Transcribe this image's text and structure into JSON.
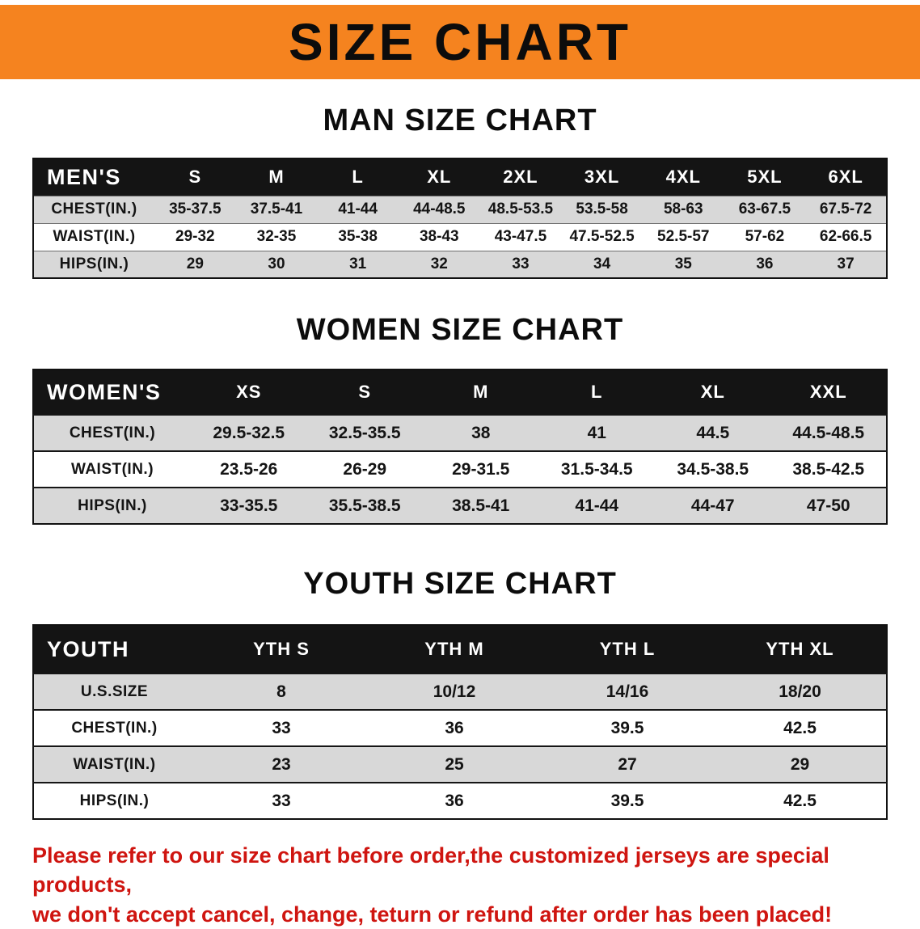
{
  "colors": {
    "banner_orange": "#f5831f",
    "table_header_black": "#141414",
    "row_stripe_gray": "#d8d8d8",
    "notice_red": "#cf1510"
  },
  "banner": {
    "title": "SIZE CHART"
  },
  "sections": [
    {
      "heading": "MAN SIZE CHART",
      "table": {
        "header": [
          "MEN'S",
          "S",
          "M",
          "L",
          "XL",
          "2XL",
          "3XL",
          "4XL",
          "5XL",
          "6XL"
        ],
        "rows": [
          {
            "label": "CHEST(IN.)",
            "values": [
              "35-37.5",
              "37.5-41",
              "41-44",
              "44-48.5",
              "48.5-53.5",
              "53.5-58",
              "58-63",
              "63-67.5",
              "67.5-72"
            ]
          },
          {
            "label": "WAIST(IN.)",
            "values": [
              "29-32",
              "32-35",
              "35-38",
              "38-43",
              "43-47.5",
              "47.5-52.5",
              "52.5-57",
              "57-62",
              "62-66.5"
            ]
          },
          {
            "label": "HIPS(IN.)",
            "values": [
              "29",
              "30",
              "31",
              "32",
              "33",
              "34",
              "35",
              "36",
              "37"
            ]
          }
        ]
      }
    },
    {
      "heading": "WOMEN SIZE CHART",
      "table": {
        "header": [
          "WOMEN'S",
          "XS",
          "S",
          "M",
          "L",
          "XL",
          "XXL"
        ],
        "rows": [
          {
            "label": "CHEST(IN.)",
            "values": [
              "29.5-32.5",
              "32.5-35.5",
              "38",
              "41",
              "44.5",
              "44.5-48.5"
            ]
          },
          {
            "label": "WAIST(IN.)",
            "values": [
              "23.5-26",
              "26-29",
              "29-31.5",
              "31.5-34.5",
              "34.5-38.5",
              "38.5-42.5"
            ]
          },
          {
            "label": "HIPS(IN.)",
            "values": [
              "33-35.5",
              "35.5-38.5",
              "38.5-41",
              "41-44",
              "44-47",
              "47-50"
            ]
          }
        ]
      }
    },
    {
      "heading": "YOUTH SIZE CHART",
      "table": {
        "header": [
          "YOUTH",
          "YTH S",
          "YTH M",
          "YTH L",
          "YTH XL"
        ],
        "rows": [
          {
            "label": "U.S.SIZE",
            "values": [
              "8",
              "10/12",
              "14/16",
              "18/20"
            ]
          },
          {
            "label": "CHEST(IN.)",
            "values": [
              "33",
              "36",
              "39.5",
              "42.5"
            ]
          },
          {
            "label": "WAIST(IN.)",
            "values": [
              "23",
              "25",
              "27",
              "29"
            ]
          },
          {
            "label": "HIPS(IN.)",
            "values": [
              "33",
              "36",
              "39.5",
              "42.5"
            ]
          }
        ]
      }
    }
  ],
  "footer": {
    "line1": "Please refer to our size chart before order,the customized jerseys are special products,",
    "line2": "we don't accept cancel, change, teturn or refund after order has been placed!"
  }
}
